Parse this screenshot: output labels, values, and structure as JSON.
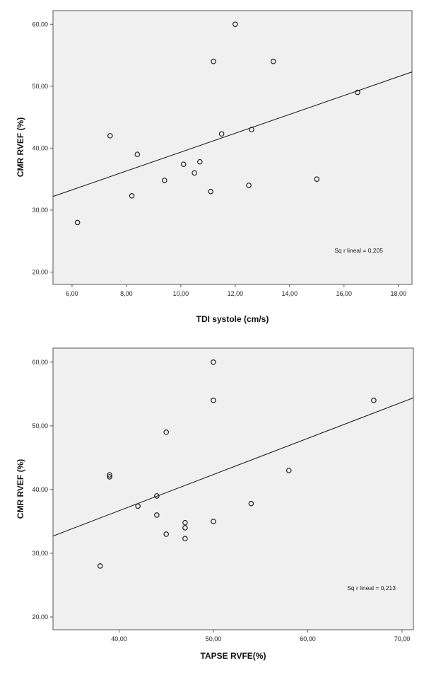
{
  "chart_data": [
    {
      "type": "scatter",
      "xlabel": "TDI systole (cm/s)",
      "ylabel": "CMR RVEF (%)",
      "xlim": [
        5.3,
        18.5
      ],
      "ylim": [
        18.0,
        62.2
      ],
      "xticks": [
        "6,00",
        "8,00",
        "10,00",
        "12,00",
        "14,00",
        "16,00",
        "18,00"
      ],
      "xtick_values": [
        6,
        8,
        10,
        12,
        14,
        16,
        18
      ],
      "yticks": [
        "20,00",
        "30,00",
        "40,00",
        "50,00",
        "60,00"
      ],
      "ytick_values": [
        20,
        30,
        40,
        50,
        60
      ],
      "points": [
        {
          "x": 6.2,
          "y": 28.0
        },
        {
          "x": 7.4,
          "y": 42.0
        },
        {
          "x": 8.2,
          "y": 32.3
        },
        {
          "x": 8.4,
          "y": 39.0
        },
        {
          "x": 9.4,
          "y": 34.8
        },
        {
          "x": 10.1,
          "y": 37.4
        },
        {
          "x": 10.5,
          "y": 36.0
        },
        {
          "x": 10.7,
          "y": 37.8
        },
        {
          "x": 11.1,
          "y": 33.0
        },
        {
          "x": 11.2,
          "y": 54.0
        },
        {
          "x": 11.5,
          "y": 42.3
        },
        {
          "x": 12.0,
          "y": 60.0
        },
        {
          "x": 12.5,
          "y": 34.0
        },
        {
          "x": 12.6,
          "y": 43.0
        },
        {
          "x": 13.4,
          "y": 54.0
        },
        {
          "x": 15.0,
          "y": 35.0
        },
        {
          "x": 16.5,
          "y": 49.0
        }
      ],
      "fit_line": {
        "x": [
          5.3,
          18.5
        ],
        "y": [
          32.2,
          52.3
        ]
      },
      "r_squared_label": "Sq r lineal = 0,205"
    },
    {
      "type": "scatter",
      "xlabel": "TAPSE RVFE(%)",
      "ylabel": "CMR RVEF (%)",
      "xlim": [
        33.0,
        71.2
      ],
      "ylim": [
        18.0,
        62.2
      ],
      "xticks": [
        "40,00",
        "50,00",
        "60,00",
        "70,00"
      ],
      "xtick_values": [
        40,
        50,
        60,
        70
      ],
      "yticks": [
        "20,00",
        "30,00",
        "40,00",
        "50,00",
        "60,00"
      ],
      "ytick_values": [
        20,
        30,
        40,
        50,
        60
      ],
      "points": [
        {
          "x": 38.0,
          "y": 28.0
        },
        {
          "x": 39.0,
          "y": 42.3
        },
        {
          "x": 39.0,
          "y": 42.0
        },
        {
          "x": 42.0,
          "y": 37.4
        },
        {
          "x": 44.0,
          "y": 39.0
        },
        {
          "x": 44.0,
          "y": 36.0
        },
        {
          "x": 45.0,
          "y": 49.0
        },
        {
          "x": 45.0,
          "y": 33.0
        },
        {
          "x": 47.0,
          "y": 34.8
        },
        {
          "x": 47.0,
          "y": 34.0
        },
        {
          "x": 47.0,
          "y": 32.3
        },
        {
          "x": 50.0,
          "y": 60.0
        },
        {
          "x": 50.0,
          "y": 54.0
        },
        {
          "x": 50.0,
          "y": 35.0
        },
        {
          "x": 54.0,
          "y": 37.8
        },
        {
          "x": 58.0,
          "y": 43.0
        },
        {
          "x": 67.0,
          "y": 54.0
        }
      ],
      "fit_line": {
        "x": [
          33.0,
          71.2
        ],
        "y": [
          32.7,
          54.4
        ]
      },
      "r_squared_label": "Sq r lineal = 0,213"
    }
  ]
}
